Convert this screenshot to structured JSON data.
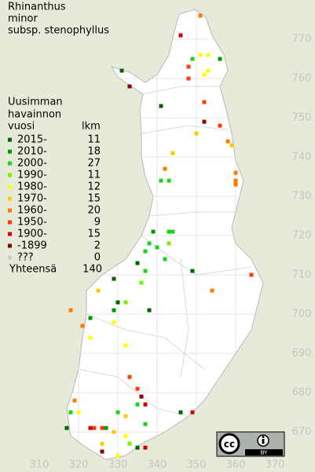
{
  "map": {
    "title": [
      "Rhinanthus",
      "minor",
      "subsp. stenophyllus"
    ],
    "xticks": [
      310,
      320,
      330,
      340,
      350,
      360,
      370
    ],
    "yticks": [
      670,
      680,
      690,
      700,
      710,
      720,
      730,
      740,
      750,
      760,
      770
    ],
    "legend": {
      "header": [
        "Uusimman",
        "havainnon",
        "vuosi",
        "lkm"
      ],
      "items": [
        {
          "label": "2015-",
          "count": 11,
          "color": "#006400"
        },
        {
          "label": "2010-",
          "count": 18,
          "color": "#009a00"
        },
        {
          "label": "2000-",
          "count": 27,
          "color": "#1ed21e"
        },
        {
          "label": "1990-",
          "count": 11,
          "color": "#78f000"
        },
        {
          "label": "1980-",
          "count": 12,
          "color": "#ffff00"
        },
        {
          "label": "1970-",
          "count": 15,
          "color": "#ffc800"
        },
        {
          "label": "1960-",
          "count": 20,
          "color": "#ff7800"
        },
        {
          "label": "1950-",
          "count": 9,
          "color": "#ff3c00"
        },
        {
          "label": "1900-",
          "count": 15,
          "color": "#d20000"
        },
        {
          "label": "-1899",
          "count": 2,
          "color": "#8c0000"
        },
        {
          "label": "???",
          "count": 0,
          "color": "#c8c8c8"
        }
      ],
      "total_label": "Yhteensä",
      "total": 140
    },
    "points": [
      [
        351,
        776,
        6
      ],
      [
        346,
        771,
        8
      ],
      [
        351,
        766,
        4
      ],
      [
        353,
        766,
        4
      ],
      [
        349,
        765,
        2
      ],
      [
        356,
        765,
        1
      ],
      [
        353,
        762,
        4
      ],
      [
        352,
        761,
        4
      ],
      [
        348,
        763,
        7
      ],
      [
        331,
        762,
        0
      ],
      [
        333,
        758,
        9
      ],
      [
        348,
        760,
        7
      ],
      [
        341,
        753,
        0
      ],
      [
        352,
        754,
        7
      ],
      [
        352,
        749,
        9
      ],
      [
        356,
        748,
        7
      ],
      [
        350,
        746,
        5
      ],
      [
        358,
        744,
        6
      ],
      [
        359,
        743,
        5
      ],
      [
        344,
        741,
        5
      ],
      [
        342,
        737,
        6
      ],
      [
        360,
        736,
        6
      ],
      [
        360,
        734,
        6
      ],
      [
        360,
        733,
        6
      ],
      [
        341,
        734,
        2
      ],
      [
        343,
        734,
        2
      ],
      [
        343,
        721,
        2
      ],
      [
        344,
        721,
        2
      ],
      [
        339,
        721,
        1
      ],
      [
        338,
        718,
        2
      ],
      [
        340,
        717,
        2
      ],
      [
        343,
        718,
        3
      ],
      [
        337,
        716,
        2
      ],
      [
        335,
        713,
        0
      ],
      [
        342,
        714,
        2
      ],
      [
        337,
        711,
        2
      ],
      [
        349,
        711,
        0
      ],
      [
        364,
        710,
        7
      ],
      [
        329,
        709,
        0
      ],
      [
        336,
        708,
        3
      ],
      [
        354,
        706,
        6
      ],
      [
        325,
        706,
        5
      ],
      [
        330,
        703,
        0
      ],
      [
        329,
        701,
        1
      ],
      [
        338,
        701,
        0
      ],
      [
        332,
        703,
        3
      ],
      [
        318,
        701,
        6
      ],
      [
        323,
        699,
        1
      ],
      [
        329,
        698,
        4
      ],
      [
        321,
        697,
        6
      ],
      [
        323,
        694,
        4
      ],
      [
        332,
        692,
        4
      ],
      [
        333,
        684,
        7
      ],
      [
        335,
        681,
        7
      ],
      [
        336,
        679,
        9
      ],
      [
        337,
        677,
        8
      ],
      [
        335,
        677,
        2
      ],
      [
        330,
        675,
        2
      ],
      [
        332,
        674,
        5
      ],
      [
        346,
        675,
        0
      ],
      [
        349,
        675,
        8
      ],
      [
        319,
        678,
        6
      ],
      [
        320,
        675,
        4
      ],
      [
        318,
        675,
        2
      ],
      [
        317,
        671,
        0
      ],
      [
        323,
        671,
        8
      ],
      [
        324,
        671,
        7
      ],
      [
        326,
        671,
        7
      ],
      [
        327,
        671,
        1
      ],
      [
        329,
        670,
        5
      ],
      [
        332,
        669,
        4
      ],
      [
        337,
        672,
        2
      ],
      [
        333,
        667,
        3
      ],
      [
        335,
        666,
        0
      ],
      [
        326,
        667,
        5
      ],
      [
        326,
        665,
        9
      ],
      [
        330,
        664,
        4
      ],
      [
        337,
        666,
        8
      ]
    ],
    "license": {
      "badge": "cc",
      "attribution": "BY"
    }
  }
}
